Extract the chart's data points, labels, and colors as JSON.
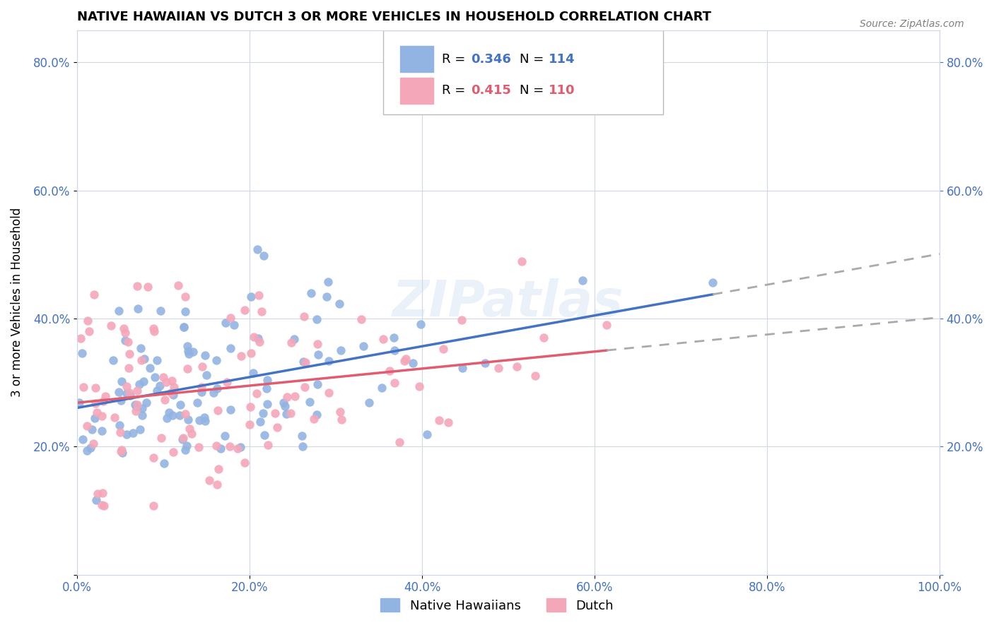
{
  "title": "NATIVE HAWAIIAN VS DUTCH 3 OR MORE VEHICLES IN HOUSEHOLD CORRELATION CHART",
  "source": "Source: ZipAtlas.com",
  "ylabel": "3 or more Vehicles in Household",
  "xmin": 0.0,
  "xmax": 1.0,
  "ymin": 0.0,
  "ymax": 0.85,
  "xticks": [
    0.0,
    0.2,
    0.4,
    0.6,
    0.8,
    1.0
  ],
  "yticks": [
    0.0,
    0.2,
    0.4,
    0.6,
    0.8
  ],
  "xtick_labels": [
    "0.0%",
    "20.0%",
    "40.0%",
    "60.0%",
    "80.0%",
    "100.0%"
  ],
  "ytick_labels": [
    "",
    "20.0%",
    "40.0%",
    "60.0%",
    "80.0%"
  ],
  "r_blue": 0.346,
  "n_blue": 114,
  "r_pink": 0.415,
  "n_pink": 110,
  "color_blue": "#92b4e3",
  "color_pink": "#f4a7b9",
  "color_blue_text": "#4472c4",
  "color_pink_text": "#e05c6e",
  "watermark": "ZIPatlas"
}
